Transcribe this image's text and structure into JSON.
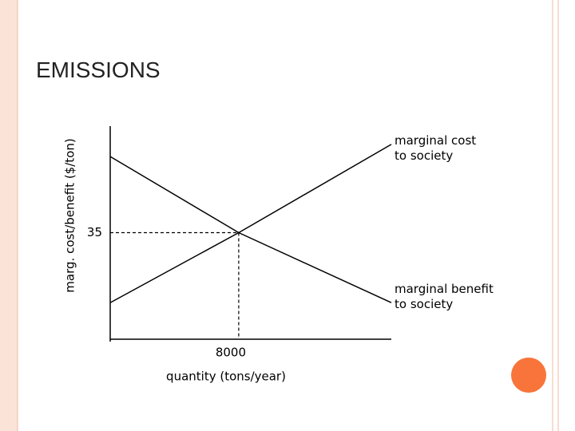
{
  "title": "EMISSIONS",
  "chart_data": {
    "type": "line",
    "x_label": "quantity (tons/year)",
    "y_label": "marg. cost/benefit ($/ton)",
    "x": [
      0,
      8000,
      17500
    ],
    "series": [
      {
        "name": "marginal cost to society",
        "color": "#000000",
        "values": [
          12,
          35,
          64
        ]
      },
      {
        "name": "marginal benefit to society",
        "color": "#000000",
        "values": [
          60,
          35,
          12
        ]
      }
    ],
    "xlim": [
      0,
      17500
    ],
    "ylim": [
      0,
      70
    ],
    "xticks": [
      8000
    ],
    "yticks": [
      35
    ]
  }
}
